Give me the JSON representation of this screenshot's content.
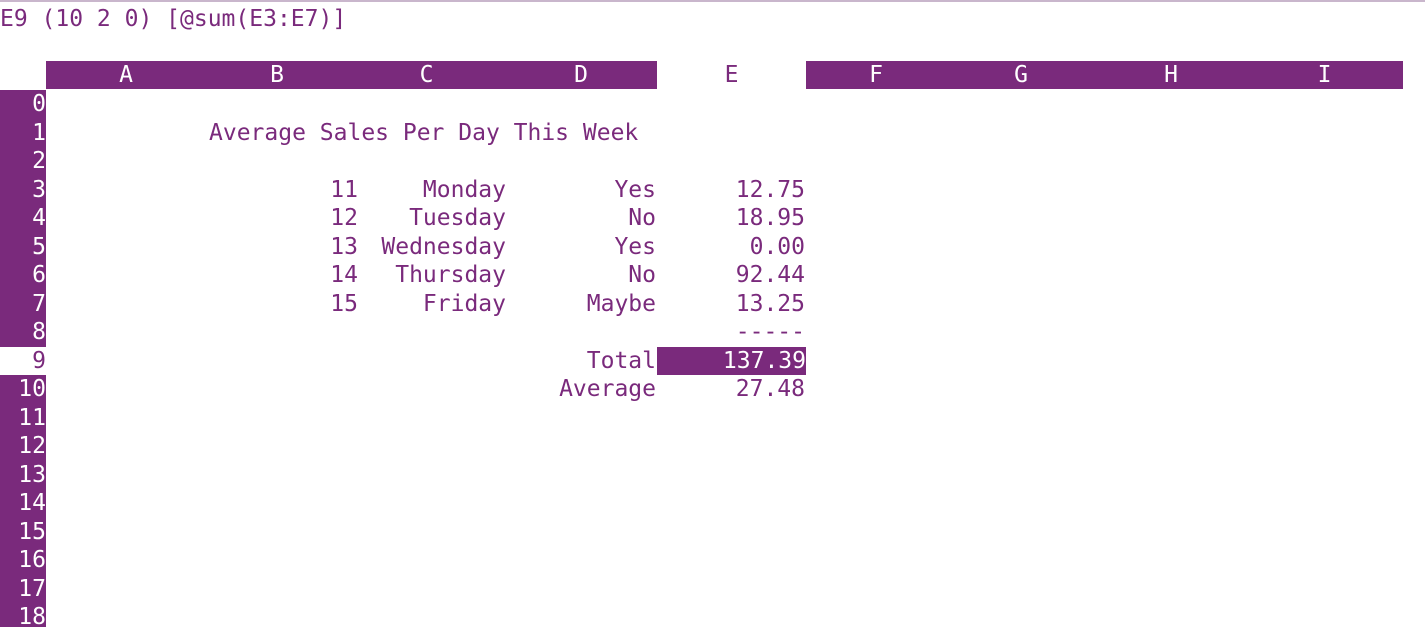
{
  "status_line": "E9 (10 2 0) [@sum(E3:E7)]",
  "columns": [
    "A",
    "B",
    "C",
    "D",
    "E",
    "F",
    "G",
    "H",
    "I"
  ],
  "rows": [
    "0",
    "1",
    "2",
    "3",
    "4",
    "5",
    "6",
    "7",
    "8",
    "9",
    "10",
    "11",
    "12",
    "13",
    "14",
    "15",
    "16",
    "17",
    "18"
  ],
  "current_cell": {
    "column": "E",
    "row": "9"
  },
  "sheet": {
    "title": "Average Sales Per Day This Week",
    "entries": [
      {
        "num": "11",
        "day": "Monday",
        "flag": "Yes",
        "amount": "12.75"
      },
      {
        "num": "12",
        "day": "Tuesday",
        "flag": "No",
        "amount": "18.95"
      },
      {
        "num": "13",
        "day": "Wednesday",
        "flag": "Yes",
        "amount": "0.00"
      },
      {
        "num": "14",
        "day": "Thursday",
        "flag": "No",
        "amount": "92.44"
      },
      {
        "num": "15",
        "day": "Friday",
        "flag": "Maybe",
        "amount": "13.25"
      }
    ],
    "separator": "-----",
    "total_label": "Total",
    "total_value": "137.39",
    "average_label": "Average",
    "average_value": "27.48"
  },
  "colors": {
    "accent": "#7a2a7c",
    "background": "#ffffff"
  }
}
